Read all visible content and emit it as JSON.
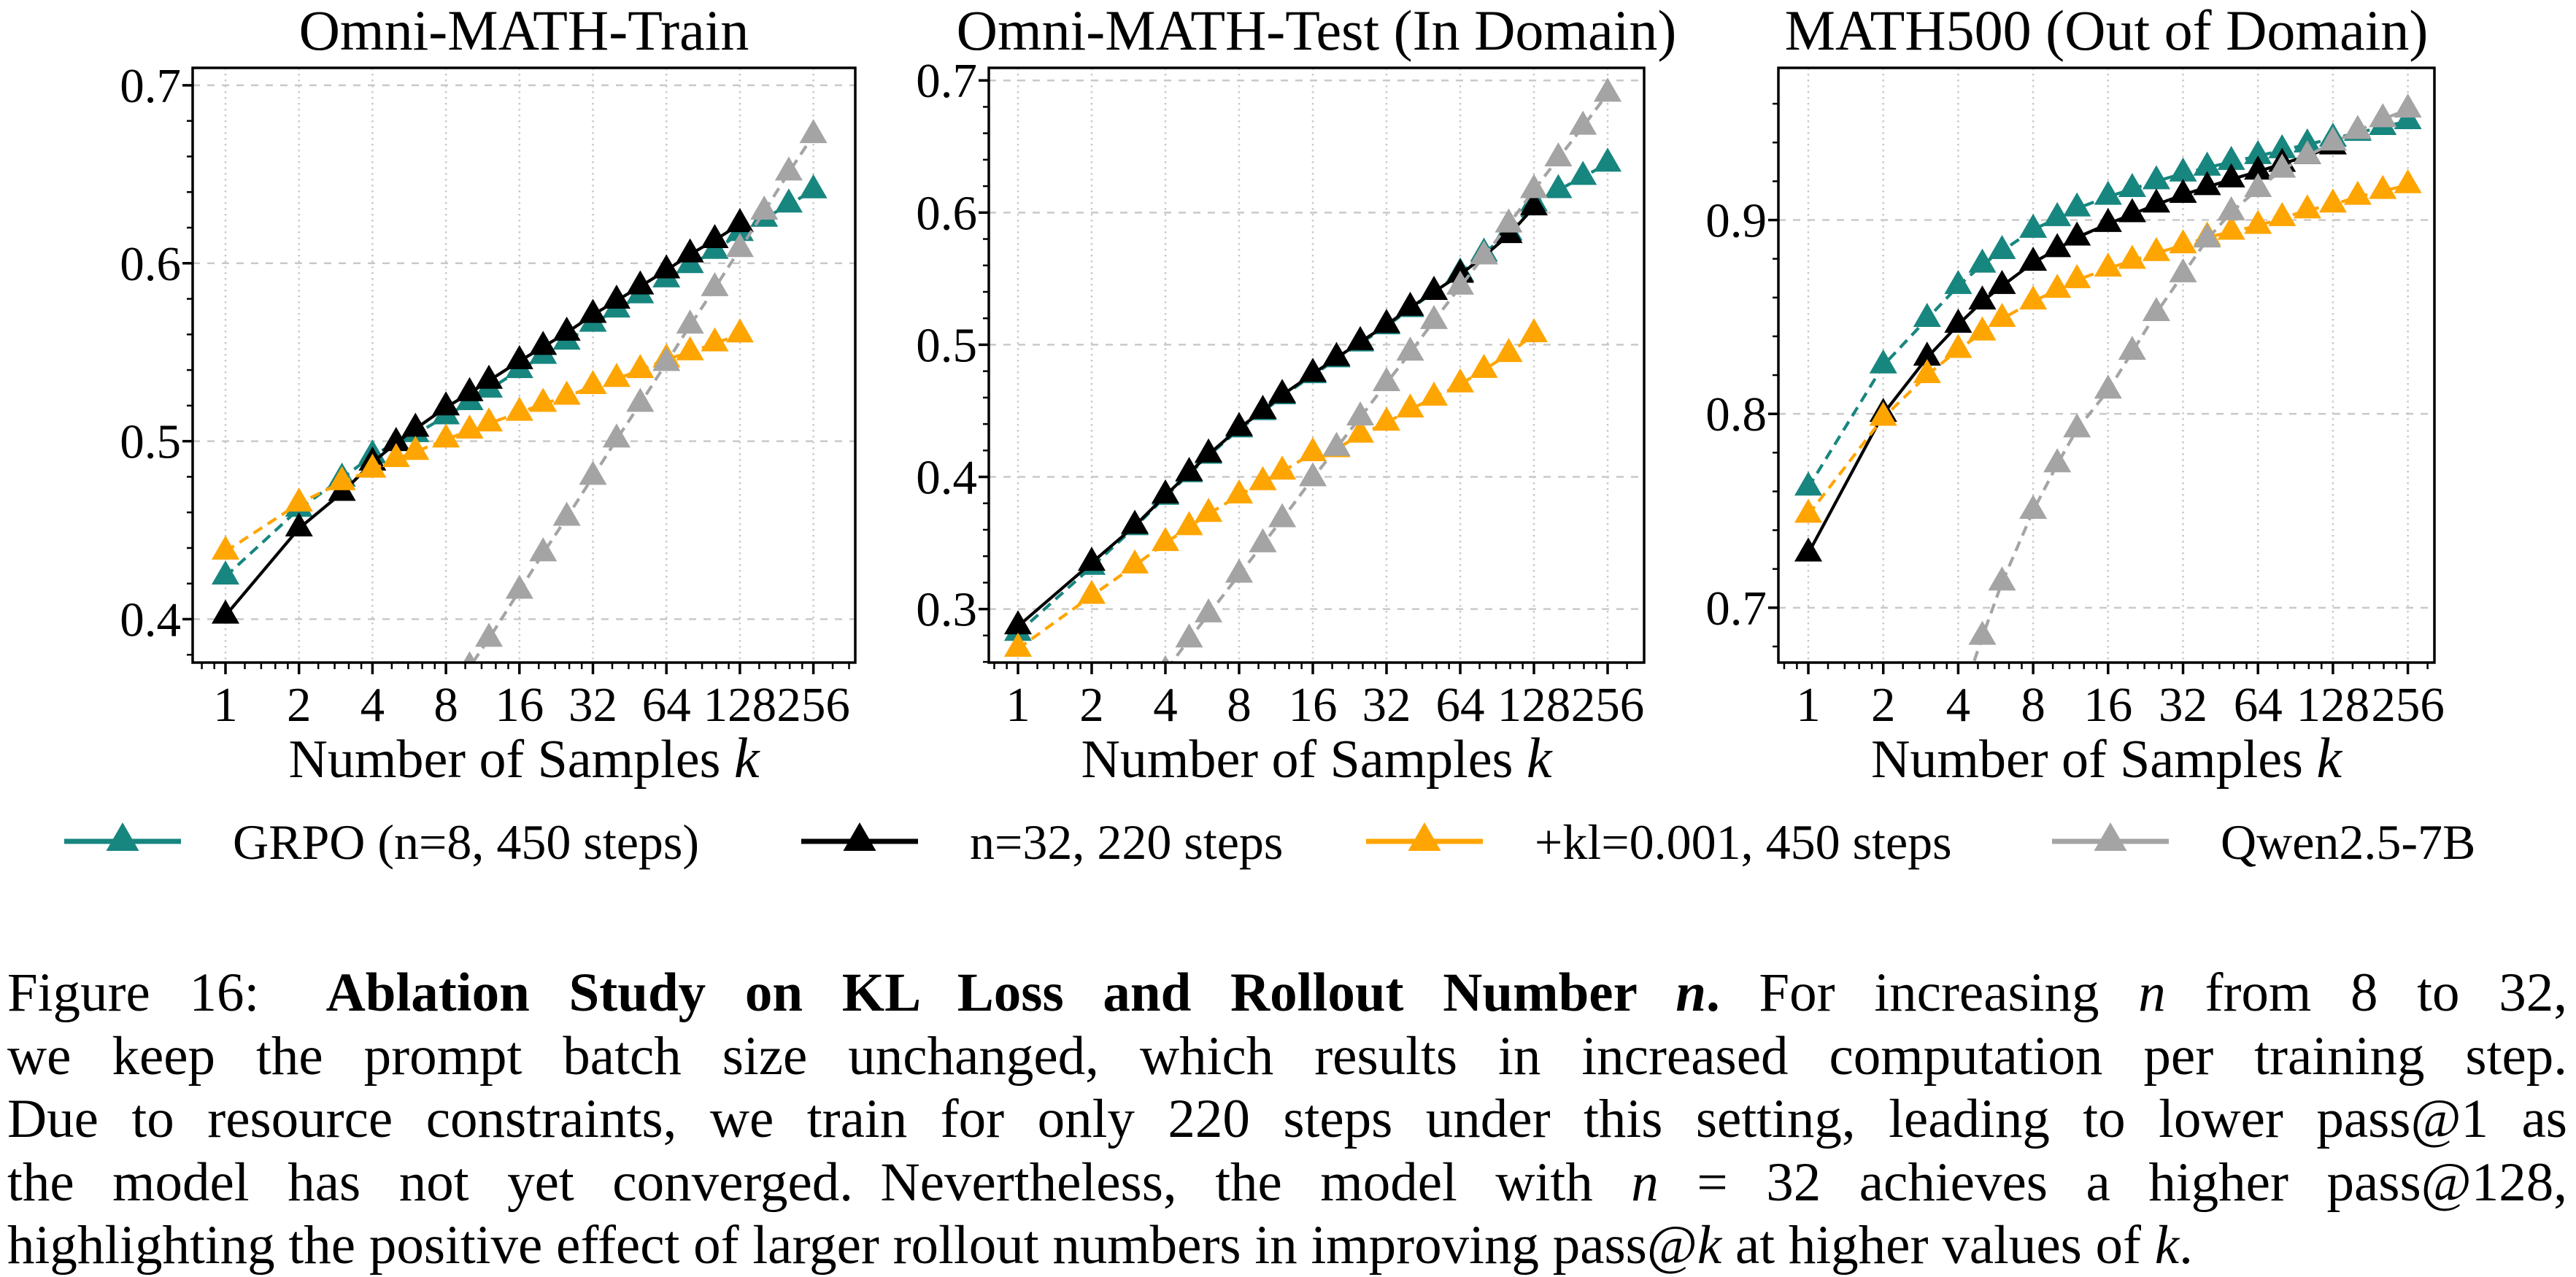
{
  "figure_label": "Figure 16",
  "colors": {
    "teal": "#17867f",
    "black": "#000000",
    "orange": "#ffa502",
    "gray": "#a4a4a4",
    "grid": "#c9c9c9"
  },
  "legend": {
    "entries": [
      {
        "label": "GRPO (n=8, 450 steps)",
        "color": "#17867f",
        "dash": true
      },
      {
        "label": "n=32, 220 steps",
        "color": "#000000",
        "dash": false
      },
      {
        "label": "+kl=0.001, 450 steps",
        "color": "#ffa502",
        "dash": true
      },
      {
        "label": "Qwen2.5-7B",
        "color": "#a4a4a4",
        "dash": true
      }
    ]
  },
  "chart_data": [
    {
      "type": "line",
      "title": "Omni-MATH-Train",
      "xlabel": "Number of Samples ",
      "xlabel_math": "k",
      "xscale": "log2",
      "xticks": [
        1,
        2,
        4,
        8,
        16,
        32,
        64,
        128,
        256
      ],
      "yticks": [
        0.4,
        0.5,
        0.6,
        0.7
      ],
      "ylim": [
        0.3756,
        0.7098
      ],
      "x": [
        1,
        2,
        3,
        4,
        5,
        6,
        8,
        10,
        12,
        16,
        20,
        25,
        32,
        40,
        50,
        64,
        80,
        101,
        128,
        161,
        203,
        256
      ],
      "series": [
        {
          "name": "GRPO (n=8, 450 steps)",
          "color": "#17867f",
          "dash": true,
          "values": [
            0.424,
            0.462,
            0.479,
            0.492,
            0.499,
            0.504,
            0.514,
            0.522,
            0.529,
            0.54,
            0.548,
            0.556,
            0.566,
            0.574,
            0.582,
            0.591,
            0.599,
            0.607,
            0.617,
            0.625,
            0.633,
            0.641
          ]
        },
        {
          "name": "n=32, 220 steps",
          "color": "#000000",
          "dash": false,
          "values": [
            0.402,
            0.451,
            0.471,
            0.488,
            0.499,
            0.507,
            0.519,
            0.527,
            0.534,
            0.545,
            0.553,
            0.561,
            0.571,
            0.579,
            0.587,
            0.596,
            0.605,
            0.613,
            0.622,
            null,
            null,
            null
          ]
        },
        {
          "name": "+kl=0.001, 450 steps",
          "color": "#ffa502",
          "dash": true,
          "values": [
            0.438,
            0.465,
            0.477,
            0.484,
            0.49,
            0.494,
            0.501,
            0.506,
            0.51,
            0.516,
            0.521,
            0.525,
            0.531,
            0.535,
            0.54,
            0.546,
            0.55,
            0.555,
            0.56,
            null,
            null,
            null
          ]
        },
        {
          "name": "Qwen2.5-7B",
          "color": "#a4a4a4",
          "dash": true,
          "values": [
            null,
            null,
            null,
            null,
            null,
            null,
            0.352,
            0.373,
            0.389,
            0.416,
            0.437,
            0.457,
            0.48,
            0.501,
            0.521,
            0.544,
            0.565,
            0.586,
            0.608,
            0.629,
            0.651,
            0.672
          ]
        }
      ]
    },
    {
      "type": "line",
      "title": "Omni-MATH-Test (In Domain)",
      "xlabel": "Number of Samples ",
      "xlabel_math": "k",
      "xscale": "log2",
      "xticks": [
        1,
        2,
        4,
        8,
        16,
        32,
        64,
        128,
        256
      ],
      "yticks": [
        0.3,
        0.4,
        0.5,
        0.6,
        0.7
      ],
      "ylim": [
        0.2595,
        0.7095
      ],
      "x": [
        1,
        2,
        3,
        4,
        5,
        6,
        8,
        10,
        12,
        16,
        20,
        25,
        32,
        40,
        50,
        64,
        80,
        101,
        128,
        161,
        203,
        256
      ],
      "series": [
        {
          "name": "GRPO (n=8, 450 steps)",
          "color": "#17867f",
          "dash": true,
          "values": [
            0.282,
            0.332,
            0.362,
            0.385,
            0.402,
            0.416,
            0.436,
            0.449,
            0.461,
            0.477,
            0.489,
            0.501,
            0.514,
            0.527,
            0.54,
            0.554,
            0.569,
            0.585,
            0.607,
            0.617,
            0.627,
            0.637
          ]
        },
        {
          "name": "n=32, 220 steps",
          "color": "#000000",
          "dash": false,
          "values": [
            0.287,
            0.335,
            0.363,
            0.386,
            0.403,
            0.417,
            0.437,
            0.45,
            0.462,
            0.478,
            0.49,
            0.502,
            0.515,
            0.528,
            0.54,
            0.553,
            0.567,
            0.583,
            0.604,
            null,
            null,
            null
          ]
        },
        {
          "name": "+kl=0.001, 450 steps",
          "color": "#ffa502",
          "dash": true,
          "values": [
            0.27,
            0.31,
            0.333,
            0.35,
            0.362,
            0.372,
            0.386,
            0.396,
            0.404,
            0.418,
            0.421,
            0.432,
            0.441,
            0.451,
            0.46,
            0.47,
            0.481,
            0.493,
            0.508,
            null,
            null,
            null
          ]
        },
        {
          "name": "Qwen2.5-7B",
          "color": "#a4a4a4",
          "dash": true,
          "values": [
            null,
            null,
            0.225,
            0.253,
            0.277,
            0.296,
            0.326,
            0.349,
            0.368,
            0.399,
            0.422,
            0.445,
            0.471,
            0.494,
            0.518,
            0.544,
            0.567,
            0.591,
            0.617,
            0.641,
            0.665,
            0.69
          ]
        }
      ]
    },
    {
      "type": "line",
      "title": "MATH500 (Out of Domain)",
      "xlabel": "Number of Samples ",
      "xlabel_math": "k",
      "xscale": "log2",
      "xticks": [
        1,
        2,
        4,
        8,
        16,
        32,
        64,
        128,
        256
      ],
      "yticks": [
        0.7,
        0.8,
        0.9
      ],
      "ylim": [
        0.6717,
        0.9785
      ],
      "x": [
        1,
        2,
        3,
        4,
        5,
        6,
        8,
        10,
        12,
        16,
        20,
        25,
        32,
        40,
        50,
        64,
        80,
        101,
        128,
        161,
        203,
        256
      ],
      "series": [
        {
          "name": "GRPO (n=8, 450 steps)",
          "color": "#17867f",
          "dash": true,
          "values": [
            0.762,
            0.825,
            0.849,
            0.866,
            0.877,
            0.884,
            0.895,
            0.901,
            0.906,
            0.912,
            0.916,
            0.92,
            0.924,
            0.927,
            0.93,
            0.933,
            0.936,
            0.939,
            0.942,
            0.945,
            0.948,
            0.951
          ]
        },
        {
          "name": "n=32, 220 steps",
          "color": "#000000",
          "dash": false,
          "values": [
            0.728,
            0.8,
            0.829,
            0.846,
            0.858,
            0.866,
            0.878,
            0.885,
            0.891,
            0.898,
            0.903,
            0.908,
            0.913,
            0.917,
            0.921,
            0.925,
            0.929,
            0.933,
            0.938,
            null,
            null,
            null
          ]
        },
        {
          "name": "+kl=0.001, 450 steps",
          "color": "#ffa502",
          "dash": true,
          "values": [
            0.748,
            0.798,
            0.82,
            0.833,
            0.842,
            0.849,
            0.858,
            0.864,
            0.869,
            0.875,
            0.879,
            0.883,
            0.887,
            0.891,
            0.894,
            0.897,
            0.901,
            0.905,
            0.908,
            0.912,
            0.915,
            0.918
          ]
        },
        {
          "name": "Qwen2.5-7B",
          "color": "#a4a4a4",
          "dash": true,
          "values": [
            null,
            null,
            null,
            0.648,
            0.685,
            0.713,
            0.75,
            0.774,
            0.792,
            0.812,
            0.832,
            0.852,
            0.872,
            0.89,
            0.904,
            0.916,
            0.926,
            0.933,
            0.94,
            0.946,
            0.952,
            0.957
          ]
        }
      ]
    }
  ],
  "caption": {
    "lines": [
      [
        {
          "t": "Figure 16:  "
        },
        {
          "t": "Ablation Study on KL Loss and Rollout Number ",
          "b": true
        },
        {
          "t": "n",
          "b": true,
          "i": true
        },
        {
          "t": ".",
          "b": true
        },
        {
          "t": " For increasing "
        },
        {
          "t": "n",
          "i": true
        },
        {
          "t": " from 8 to 32,"
        }
      ],
      [
        {
          "t": "we keep the prompt batch size unchanged, which results in increased computation per training step."
        }
      ],
      [
        {
          "t": "Due to resource constraints, we train for only 220 steps under this setting, leading to lower pass@1 as"
        }
      ],
      [
        {
          "t": "the model has not yet converged. Nevertheless, the model with "
        },
        {
          "t": "n",
          "i": true
        },
        {
          "t": " = 32 achieves a higher pass@128,"
        }
      ],
      [
        {
          "t": "highlighting the positive effect of larger rollout numbers in improving pass@"
        },
        {
          "t": "k",
          "i": true
        },
        {
          "t": " at higher values of "
        },
        {
          "t": "k",
          "i": true
        },
        {
          "t": "."
        }
      ]
    ]
  }
}
